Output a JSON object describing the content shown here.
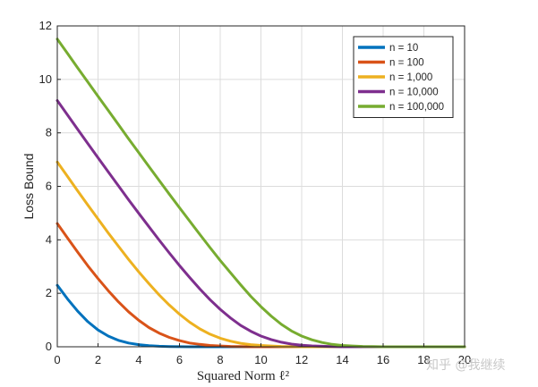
{
  "chart_data": {
    "type": "line",
    "xlabel": "Squared Norm ℓ²",
    "ylabel": "Loss Bound",
    "xlim": [
      0,
      20
    ],
    "ylim": [
      0,
      12
    ],
    "xticks": [
      0,
      2,
      4,
      6,
      8,
      10,
      12,
      14,
      16,
      18,
      20
    ],
    "yticks": [
      0,
      2,
      4,
      6,
      8,
      10,
      12
    ],
    "grid": true,
    "legend_position": "top-right",
    "x": [
      0,
      0.5,
      1,
      1.5,
      2,
      2.5,
      3,
      3.5,
      4,
      4.5,
      5,
      5.5,
      6,
      6.5,
      7,
      7.5,
      8,
      8.5,
      9,
      9.5,
      10,
      10.5,
      11,
      11.5,
      12,
      12.5,
      13,
      13.5,
      14,
      14.5,
      15,
      15.5,
      16,
      16.5,
      17,
      17.5,
      18,
      18.5,
      19,
      19.5,
      20
    ],
    "series": [
      {
        "name": "n = 10",
        "color": "#0072BD",
        "values": [
          2.3,
          1.79,
          1.33,
          0.94,
          0.63,
          0.4,
          0.24,
          0.14,
          0.08,
          0.04,
          0.02,
          0.01,
          0.005,
          0,
          0,
          0,
          0,
          0,
          0,
          0,
          0,
          0,
          0,
          0,
          0,
          0,
          0,
          0,
          0,
          0,
          0,
          0,
          0,
          0,
          0,
          0,
          0,
          0,
          0,
          0,
          0
        ]
      },
      {
        "name": "n = 100",
        "color": "#D95319",
        "values": [
          4.61,
          4.07,
          3.54,
          3.03,
          2.55,
          2.1,
          1.68,
          1.31,
          0.99,
          0.72,
          0.51,
          0.35,
          0.23,
          0.14,
          0.09,
          0.05,
          0.03,
          0.015,
          0.008,
          0,
          0,
          0,
          0,
          0,
          0,
          0,
          0,
          0,
          0,
          0,
          0,
          0,
          0,
          0,
          0,
          0,
          0,
          0,
          0,
          0,
          0
        ]
      },
      {
        "name": "n = 1,000",
        "color": "#EDB120",
        "values": [
          6.91,
          6.37,
          5.83,
          5.3,
          4.78,
          4.26,
          3.76,
          3.27,
          2.8,
          2.36,
          1.94,
          1.56,
          1.22,
          0.92,
          0.67,
          0.47,
          0.32,
          0.21,
          0.13,
          0.08,
          0.05,
          0.03,
          0.015,
          0.008,
          0,
          0,
          0,
          0,
          0,
          0,
          0,
          0,
          0,
          0,
          0,
          0,
          0,
          0,
          0,
          0,
          0
        ]
      },
      {
        "name": "n = 10,000",
        "color": "#7E2F8E",
        "values": [
          9.21,
          8.67,
          8.13,
          7.6,
          7.07,
          6.54,
          6.02,
          5.5,
          4.99,
          4.49,
          3.99,
          3.51,
          3.04,
          2.59,
          2.16,
          1.76,
          1.4,
          1.08,
          0.8,
          0.58,
          0.4,
          0.27,
          0.17,
          0.1,
          0.06,
          0.035,
          0.02,
          0.01,
          0,
          0,
          0,
          0,
          0,
          0,
          0,
          0,
          0,
          0,
          0,
          0,
          0
        ]
      },
      {
        "name": "n = 100,000",
        "color": "#77AC30",
        "values": [
          11.51,
          10.97,
          10.43,
          9.9,
          9.37,
          8.84,
          8.31,
          7.78,
          7.26,
          6.74,
          6.22,
          5.71,
          5.2,
          4.7,
          4.2,
          3.71,
          3.23,
          2.77,
          2.32,
          1.89,
          1.5,
          1.15,
          0.84,
          0.59,
          0.4,
          0.26,
          0.16,
          0.09,
          0.05,
          0.03,
          0.015,
          0.008,
          0,
          0,
          0,
          0,
          0,
          0,
          0,
          0,
          0
        ]
      }
    ]
  },
  "watermark": "知乎 @我继续"
}
